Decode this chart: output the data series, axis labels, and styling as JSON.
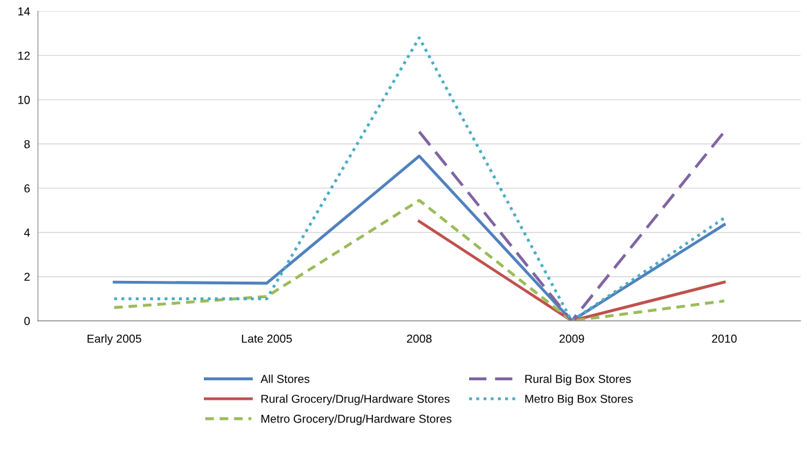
{
  "chart_data": {
    "type": "line",
    "categories": [
      "Early 2005",
      "Late 2005",
      "2008",
      "2009",
      "2010"
    ],
    "series": [
      {
        "name": "All Stores",
        "color": "#4f81bd",
        "line_style": "solid",
        "values": [
          1.75,
          1.7,
          7.45,
          0,
          4.35
        ]
      },
      {
        "name": "Rural Grocery/Drug/Hardware Stores",
        "color": "#c0504d",
        "line_style": "solid",
        "values": [
          null,
          null,
          4.5,
          0,
          1.75
        ]
      },
      {
        "name": "Metro Grocery/Drug/Hardware Stores",
        "color": "#9bbb59",
        "line_style": "dashed",
        "values": [
          0.6,
          1.1,
          5.45,
          0,
          0.9
        ]
      },
      {
        "name": "Rural Big Box Stores",
        "color": "#8064a2",
        "line_style": "longdash",
        "values": [
          null,
          null,
          8.55,
          0,
          8.55
        ]
      },
      {
        "name": "Metro Big Box Stores",
        "color": "#4bacc6",
        "line_style": "dotted",
        "values": [
          1.0,
          1.0,
          12.8,
          0,
          4.65
        ]
      }
    ],
    "ylim": [
      0,
      14
    ],
    "yticks": [
      0,
      2,
      4,
      6,
      8,
      10,
      12,
      14
    ],
    "grid": "y",
    "legend": "bottom"
  }
}
